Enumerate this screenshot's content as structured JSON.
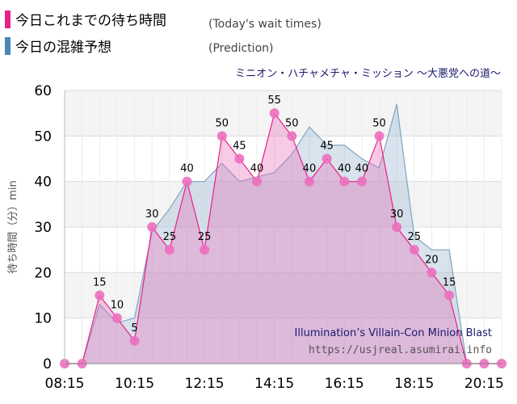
{
  "legend": {
    "today": {
      "label": "今日これまでの待ち時間",
      "label_en": "(Today's wait times)",
      "color": "#e8208a"
    },
    "prediction": {
      "label": "今日の混雑予想",
      "label_en": "(Prediction)",
      "color": "#4b86b4"
    }
  },
  "ride_name": "ミニオン・ハチャメチャ・ミッション 〜大悪党への道〜",
  "watermark": {
    "title": "Illumination’s Villain-Con Minion Blast",
    "url": "https://usjreal.asumirai.info"
  },
  "chart_data": {
    "type": "area",
    "title": "",
    "ylabel": "待ち時間（分）min",
    "xlabel": "",
    "ylim": [
      0,
      60
    ],
    "yticks": [
      0,
      10,
      20,
      30,
      40,
      50,
      60
    ],
    "xlim_slots": [
      0,
      25
    ],
    "xticks": [
      {
        "slot": 0,
        "label": "08:15"
      },
      {
        "slot": 4,
        "label": "10:15"
      },
      {
        "slot": 8,
        "label": "12:15"
      },
      {
        "slot": 12,
        "label": "14:15"
      },
      {
        "slot": 16,
        "label": "16:15"
      },
      {
        "slot": 20,
        "label": "18:15"
      },
      {
        "slot": 24,
        "label": "20:15"
      }
    ],
    "grid": true,
    "series": [
      {
        "name": "今日の混雑予想",
        "kind": "prediction",
        "color": "#a9c1d6",
        "points": [
          [
            0,
            0
          ],
          [
            1,
            0
          ],
          [
            2,
            13
          ],
          [
            3,
            9
          ],
          [
            4,
            10
          ],
          [
            5,
            29
          ],
          [
            6,
            34
          ],
          [
            7,
            40
          ],
          [
            8,
            40
          ],
          [
            9,
            44
          ],
          [
            10,
            40
          ],
          [
            11,
            41
          ],
          [
            12,
            42
          ],
          [
            13,
            46
          ],
          [
            14,
            52
          ],
          [
            15,
            48
          ],
          [
            16,
            48
          ],
          [
            17,
            45
          ],
          [
            18,
            43
          ],
          [
            19,
            57
          ],
          [
            20,
            28
          ],
          [
            21,
            25
          ],
          [
            22,
            25
          ],
          [
            23,
            0
          ],
          [
            24,
            0
          ],
          [
            25,
            0
          ]
        ]
      },
      {
        "name": "今日これまでの待ち時間",
        "kind": "actual",
        "color": "#e8208a",
        "points": [
          [
            0,
            0
          ],
          [
            1,
            0
          ],
          [
            2,
            15
          ],
          [
            3,
            10
          ],
          [
            4,
            5
          ],
          [
            5,
            30
          ],
          [
            6,
            25
          ],
          [
            7,
            40
          ],
          [
            8,
            25
          ],
          [
            9,
            50
          ],
          [
            10,
            45
          ],
          [
            11,
            40
          ],
          [
            12,
            55
          ],
          [
            13,
            50
          ],
          [
            14,
            40
          ],
          [
            15,
            45
          ],
          [
            16,
            40
          ],
          [
            17,
            40
          ],
          [
            18,
            50
          ],
          [
            19,
            30
          ],
          [
            20,
            25
          ],
          [
            21,
            20
          ],
          [
            22,
            15
          ],
          [
            23,
            0
          ],
          [
            24,
            0
          ],
          [
            25,
            0
          ]
        ],
        "labeled": [
          2,
          3,
          4,
          5,
          6,
          7,
          8,
          9,
          10,
          11,
          12,
          13,
          14,
          15,
          16,
          17,
          18,
          19,
          20,
          21,
          22
        ]
      }
    ]
  }
}
